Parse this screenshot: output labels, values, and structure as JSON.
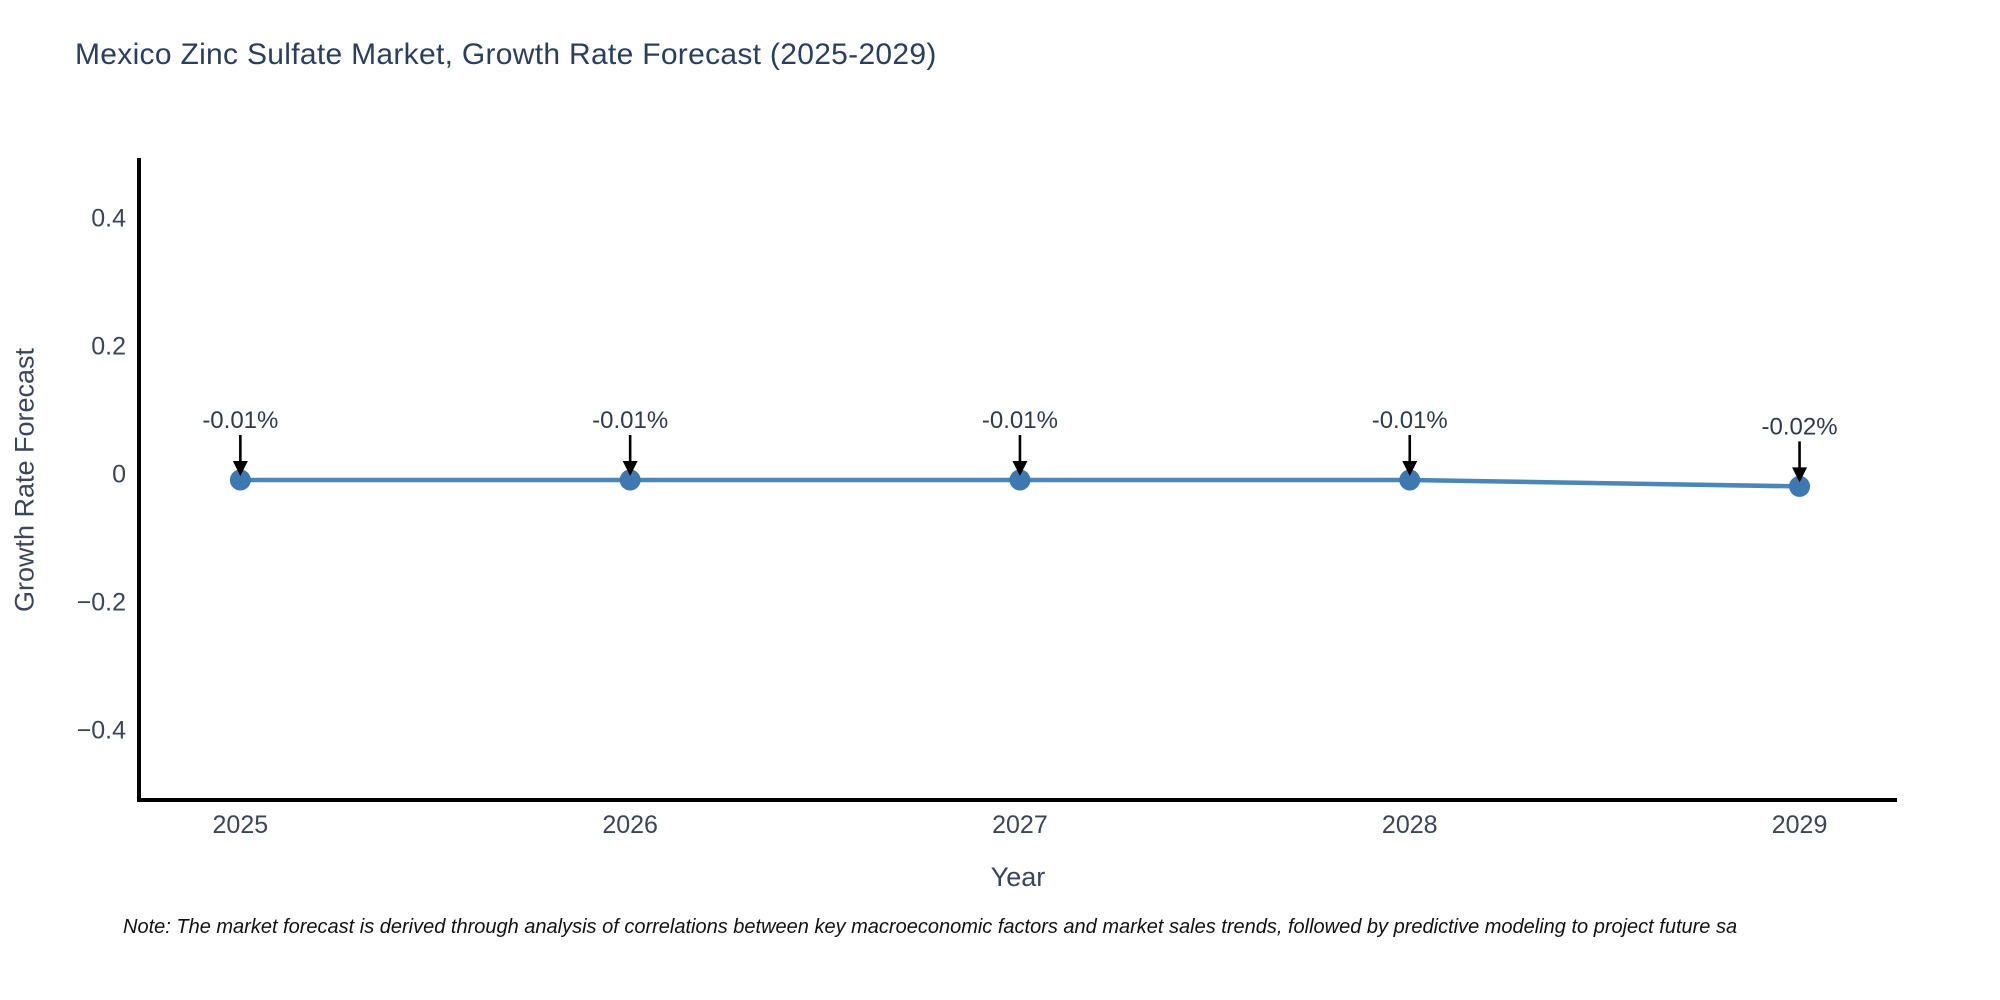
{
  "title": "Mexico Zinc Sulfate Market, Growth Rate Forecast (2025-2029)",
  "note": "Note: The market forecast is derived through analysis of correlations between key macroeconomic factors and market sales trends, followed by predictive modeling to project future sa",
  "colors": {
    "line": "#4a86b8",
    "marker": "#3d79b0",
    "spine": "#000000",
    "arrow": "#000000",
    "title_text": "#2a3f5f",
    "axis_text": "#3b4559",
    "background": "#ffffff"
  },
  "chart_data": {
    "type": "line",
    "title": "Mexico Zinc Sulfate Market, Growth Rate Forecast (2025-2029)",
    "xlabel": "Year",
    "ylabel": "Growth Rate Forecast",
    "x": [
      2025,
      2026,
      2027,
      2028,
      2029
    ],
    "values": [
      -0.01,
      -0.01,
      -0.01,
      -0.01,
      -0.02
    ],
    "point_labels": [
      "-0.01%",
      "-0.01%",
      "-0.01%",
      "-0.01%",
      "-0.02%"
    ],
    "xtick_labels": [
      "2025",
      "2026",
      "2027",
      "2028",
      "2029"
    ],
    "yticks": [
      0.4,
      0.2,
      0,
      -0.2,
      -0.4
    ],
    "ytick_labels": [
      "0.4",
      "0.2",
      "0",
      "−0.2",
      "−0.4"
    ],
    "xlim": [
      2024.74,
      2029.25
    ],
    "ylim": [
      -0.51,
      0.49
    ],
    "grid": false,
    "legend": "none",
    "spines": [
      "left",
      "bottom"
    ]
  }
}
